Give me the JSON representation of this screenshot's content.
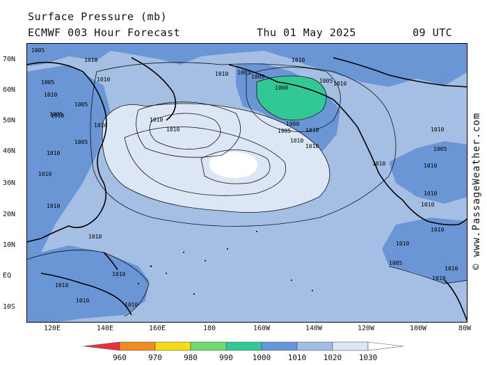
{
  "header": {
    "title": "Surface Pressure (mb)",
    "model": "ECMWF 003 Hour Forecast",
    "date": "Thu 01 May 2025",
    "time": "09 UTC"
  },
  "watermark": "© www.PassageWeather.com",
  "axes": {
    "lat_labels": [
      "70N",
      "60N",
      "50N",
      "40N",
      "30N",
      "20N",
      "10N",
      "EQ",
      "10S"
    ],
    "lon_labels": [
      "120E",
      "140E",
      "160E",
      "180",
      "160W",
      "140W",
      "120W",
      "100W",
      "80W"
    ]
  },
  "colorbar": {
    "labels": [
      "960",
      "970",
      "980",
      "990",
      "1000",
      "1010",
      "1020",
      "1030"
    ],
    "colors": [
      "#e8323c",
      "#f08c1e",
      "#f5dc14",
      "#6edc6e",
      "#32c896",
      "#6496dc",
      "#a0bee6",
      "#dce6f5",
      "#ffffff"
    ]
  },
  "map_colors": {
    "lt1000": "#32c896",
    "p1000_1010": "#6a96d6",
    "p1010_1020": "#a4bee4",
    "p1020_1030": "#dce6f5",
    "gt1030": "#ffffff"
  },
  "contour_labels": [
    "1005",
    "1010",
    "1005",
    "1010",
    "1010",
    "1005",
    "1010",
    "1005",
    "1010",
    "1005",
    "1010",
    "1010",
    "1010",
    "1005",
    "1000",
    "1010",
    "1000",
    "1005",
    "1010",
    "1010",
    "1000",
    "1005",
    "1010",
    "1010",
    "1010",
    "1005",
    "1010",
    "1010",
    "1010",
    "1010",
    "1010",
    "1010",
    "1010",
    "1005",
    "1010",
    "1010",
    "1010",
    "1010",
    "1010",
    "1010",
    "1010",
    "1010",
    "1010"
  ]
}
